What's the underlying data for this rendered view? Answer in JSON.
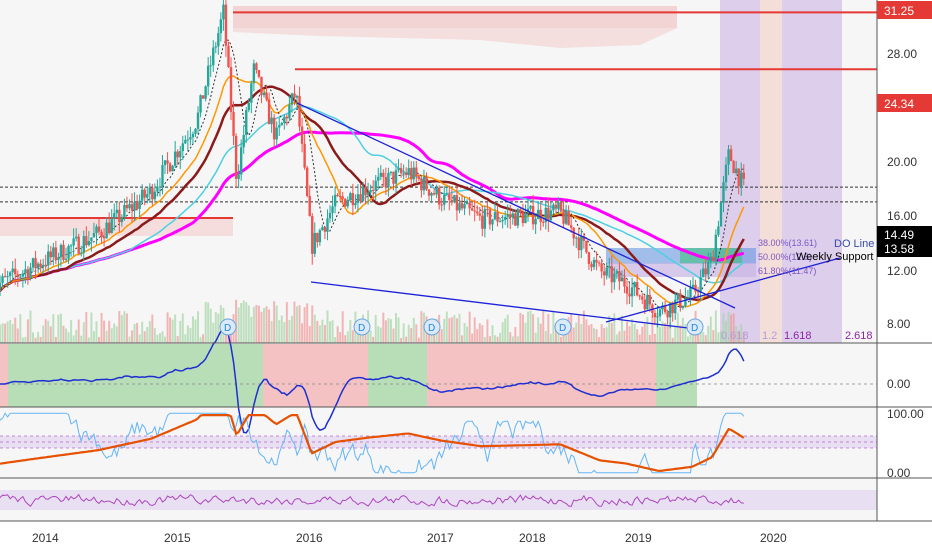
{
  "chart_data": {
    "type": "candlestick",
    "title": "",
    "x_axis": {
      "years": [
        "2014",
        "2015",
        "2016",
        "2017",
        "2018",
        "2019",
        "2020"
      ]
    },
    "y_axis": {
      "scale": "log",
      "ticks": [
        "28.00",
        "24.00",
        "20.00",
        "16.00",
        "12.00",
        "8.00"
      ],
      "range": [
        7.3,
        33
      ]
    },
    "horizontal_levels": [
      {
        "value": 31.25,
        "label": "31.25",
        "color": "#e53935"
      },
      {
        "value": 24.34,
        "label": "24.34",
        "color": "#e53935"
      },
      {
        "value": 14.49,
        "label": "14.49",
        "color": "#000000"
      },
      {
        "value": 13.58,
        "label": "13.58",
        "color": "#000000"
      }
    ],
    "fib_labels": [
      {
        "text": "38.00%(13.61)",
        "value": 13.61
      },
      {
        "text": "50.00%(12.5)",
        "value": 12.5
      },
      {
        "text": "61.80%(11.47)",
        "value": 11.47
      }
    ],
    "fib_time_labels": [
      "0.618",
      "1.2",
      "1.618",
      "2.618"
    ],
    "annotations": [
      "DO Line",
      "Weekly Support"
    ],
    "dividend_markers": [
      "D",
      "D",
      "D",
      "D",
      "D"
    ],
    "price_anchors": [
      {
        "date": "2013.7",
        "close": 9.3
      },
      {
        "date": "2014.0",
        "close": 10.2
      },
      {
        "date": "2014.5",
        "close": 11.8
      },
      {
        "date": "2014.9",
        "close": 14.2
      },
      {
        "date": "2015.25",
        "close": 19.5
      },
      {
        "date": "2015.45",
        "close": 31.25
      },
      {
        "date": "2015.55",
        "close": 15.0
      },
      {
        "date": "2015.68",
        "close": 24.3
      },
      {
        "date": "2015.85",
        "close": 18.0
      },
      {
        "date": "2016.0",
        "close": 22.0
      },
      {
        "date": "2016.12",
        "close": 11.2
      },
      {
        "date": "2016.3",
        "close": 13.5
      },
      {
        "date": "2016.55",
        "close": 14.5
      },
      {
        "date": "2016.85",
        "close": 15.5
      },
      {
        "date": "2017.1",
        "close": 13.8
      },
      {
        "date": "2017.4",
        "close": 12.6
      },
      {
        "date": "2017.75",
        "close": 12.8
      },
      {
        "date": "2018.0",
        "close": 13.0
      },
      {
        "date": "2018.3",
        "close": 10.0
      },
      {
        "date": "2018.5",
        "close": 9.5
      },
      {
        "date": "2018.75",
        "close": 8.4
      },
      {
        "date": "2019.0",
        "close": 9.0
      },
      {
        "date": "2019.15",
        "close": 10.5
      },
      {
        "date": "2019.28",
        "close": 16.8
      },
      {
        "date": "2019.4",
        "close": 14.3
      }
    ],
    "indicators": {
      "panel2": {
        "ticks": [
          "0.00"
        ]
      },
      "panel3": {
        "ticks": [
          "100.00",
          "0.00"
        ]
      },
      "panel4": {
        "ticks": []
      }
    },
    "grid": false
  }
}
